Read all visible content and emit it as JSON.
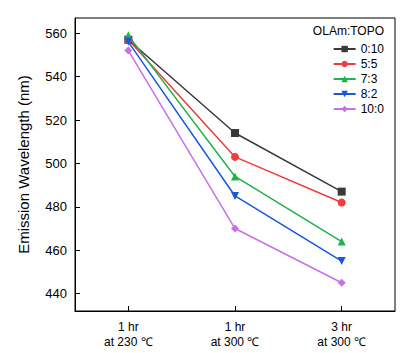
{
  "chart_data": {
    "type": "line",
    "y_label": "Emission Wavelength (nm)",
    "legend_title": "OLAm:TOPO",
    "categories": [
      "1 hr\nat 230 ℃",
      "1 hr\nat 300 ℃",
      "3 hr\nat 300 ℃"
    ],
    "series": [
      {
        "name": "0:10",
        "color": "#3a3a3a",
        "marker": "square",
        "values": [
          557,
          514,
          487
        ]
      },
      {
        "name": "5:5",
        "color": "#f03c3c",
        "marker": "circle",
        "values": [
          557,
          503,
          482
        ]
      },
      {
        "name": "7:3",
        "color": "#22b14c",
        "marker": "triangle_up",
        "values": [
          559,
          494,
          464
        ]
      },
      {
        "name": "8:2",
        "color": "#1a56e0",
        "marker": "triangle_down",
        "values": [
          556,
          485,
          455
        ]
      },
      {
        "name": "10:0",
        "color": "#c771e8",
        "marker": "diamond",
        "values": [
          552,
          470,
          445
        ]
      }
    ],
    "ylim": [
      432,
      567
    ],
    "yticks": [
      440,
      460,
      480,
      500,
      520,
      540,
      560
    ],
    "grid": false,
    "legend": "upper right"
  }
}
